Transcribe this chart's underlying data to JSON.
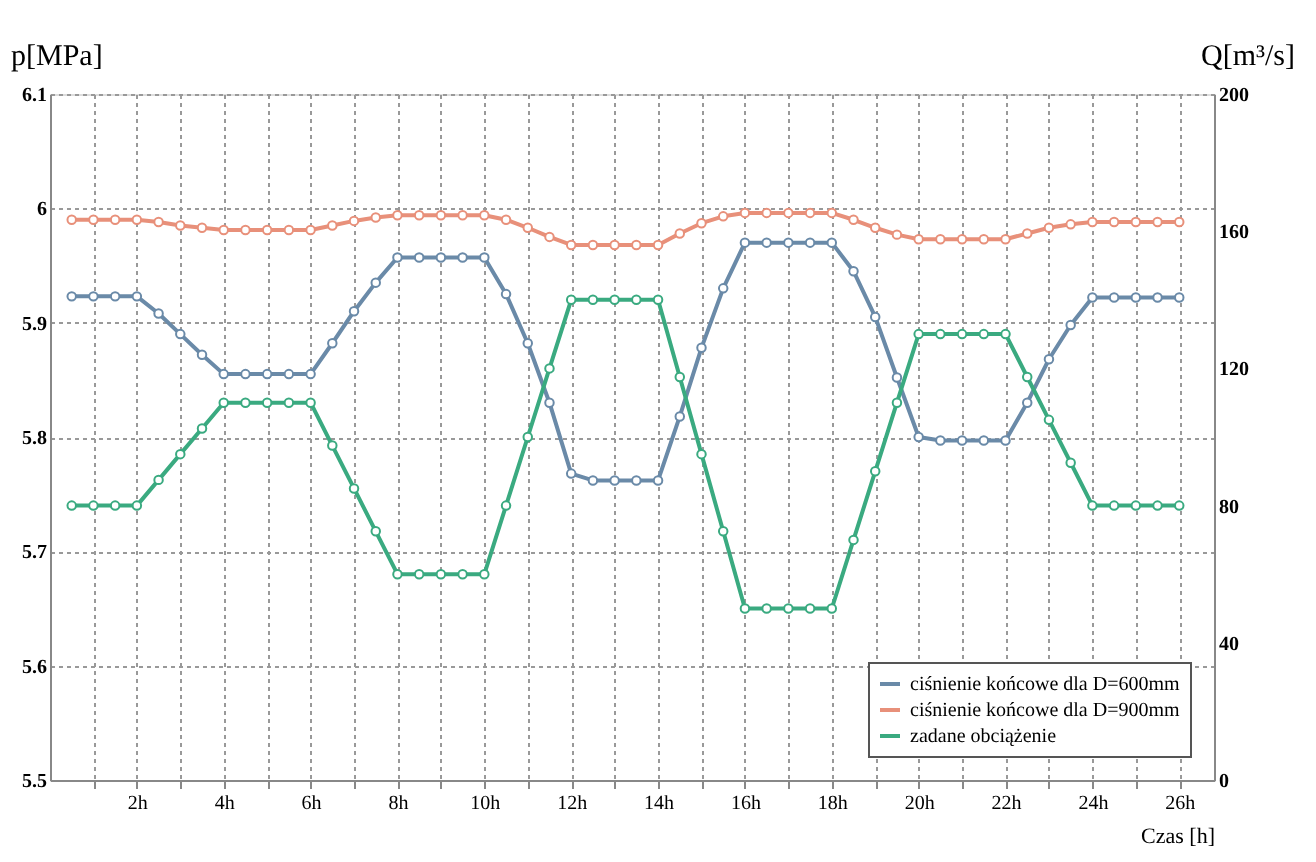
{
  "chart_data": {
    "type": "line",
    "xlabel": "Czas [h]",
    "ylabel": "p[MPa]",
    "y2label": "Q[m³/s]",
    "x": [
      0.5,
      1,
      1.5,
      2,
      2.5,
      3,
      3.5,
      4,
      4.5,
      5,
      5.5,
      6,
      6.5,
      7,
      7.5,
      8,
      8.5,
      9,
      9.5,
      10,
      10.5,
      11,
      11.5,
      12,
      12.5,
      13,
      13.5,
      14,
      14.5,
      15,
      15.5,
      16,
      16.5,
      17,
      17.5,
      18,
      18.5,
      19,
      19.5,
      20,
      20.5,
      21,
      21.5,
      22,
      22.5,
      23,
      23.5,
      24,
      24.5,
      25,
      25.5,
      26
    ],
    "series": [
      {
        "name": "ciśnienie końcowe dla D=600mm",
        "color": "#6a8aa8",
        "values": [
          5.923,
          5.923,
          5.923,
          5.923,
          5.908,
          5.89,
          5.872,
          5.855,
          5.855,
          5.855,
          5.855,
          5.855,
          5.882,
          5.91,
          5.935,
          5.957,
          5.957,
          5.957,
          5.957,
          5.957,
          5.925,
          5.882,
          5.83,
          5.768,
          5.762,
          5.762,
          5.762,
          5.762,
          5.818,
          5.878,
          5.93,
          5.97,
          5.97,
          5.97,
          5.97,
          5.97,
          5.945,
          5.905,
          5.852,
          5.8,
          5.797,
          5.797,
          5.797,
          5.797,
          5.83,
          5.868,
          5.898,
          5.922,
          5.922,
          5.922,
          5.922,
          5.922
        ]
      },
      {
        "name": "ciśnienie końcowe dla D=900mm",
        "color": "#e8907a",
        "values": [
          5.99,
          5.99,
          5.99,
          5.99,
          5.988,
          5.985,
          5.983,
          5.981,
          5.981,
          5.981,
          5.981,
          5.981,
          5.985,
          5.989,
          5.992,
          5.994,
          5.994,
          5.994,
          5.994,
          5.994,
          5.99,
          5.983,
          5.975,
          5.968,
          5.968,
          5.968,
          5.968,
          5.968,
          5.978,
          5.987,
          5.993,
          5.996,
          5.996,
          5.996,
          5.996,
          5.996,
          5.99,
          5.983,
          5.977,
          5.973,
          5.973,
          5.973,
          5.973,
          5.973,
          5.978,
          5.983,
          5.986,
          5.988,
          5.988,
          5.988,
          5.988,
          5.988
        ]
      },
      {
        "name": "zadane obciążenie",
        "color": "#3aaa80",
        "axis": "y2",
        "values": [
          80,
          80,
          80,
          80,
          87.5,
          95,
          102.5,
          110,
          110,
          110,
          110,
          110,
          97.5,
          85,
          72.5,
          60,
          60,
          60,
          60,
          60,
          80,
          100,
          120,
          140,
          140,
          140,
          140,
          140,
          117.5,
          95,
          72.5,
          50,
          50,
          50,
          50,
          50,
          70,
          90,
          110,
          130,
          130,
          130,
          130,
          130,
          117.5,
          105,
          92.5,
          80,
          80,
          80,
          80,
          80
        ]
      }
    ],
    "xlim": [
      0,
      26.8
    ],
    "xticks": [
      {
        "value": 1,
        "label": null
      },
      {
        "value": 2,
        "label": "2h"
      },
      {
        "value": 3,
        "label": null
      },
      {
        "value": 4,
        "label": "4h"
      },
      {
        "value": 5,
        "label": null
      },
      {
        "value": 6,
        "label": "6h"
      },
      {
        "value": 7,
        "label": null
      },
      {
        "value": 8,
        "label": "8h"
      },
      {
        "value": 9,
        "label": null
      },
      {
        "value": 10,
        "label": "10h"
      },
      {
        "value": 11,
        "label": null
      },
      {
        "value": 12,
        "label": "12h"
      },
      {
        "value": 13,
        "label": null
      },
      {
        "value": 14,
        "label": "14h"
      },
      {
        "value": 15,
        "label": null
      },
      {
        "value": 16,
        "label": "16h"
      },
      {
        "value": 17,
        "label": null
      },
      {
        "value": 18,
        "label": "18h"
      },
      {
        "value": 19,
        "label": null
      },
      {
        "value": 20,
        "label": "20h"
      },
      {
        "value": 21,
        "label": null
      },
      {
        "value": 22,
        "label": "22h"
      },
      {
        "value": 23,
        "label": null
      },
      {
        "value": 24,
        "label": "24h"
      },
      {
        "value": 25,
        "label": null
      },
      {
        "value": 26,
        "label": "26h"
      }
    ],
    "ylim": [
      5.5,
      6.1
    ],
    "yticks": [
      5.5,
      5.6,
      5.7,
      5.8,
      5.9,
      6,
      6.1
    ],
    "y2lim": [
      0,
      200
    ],
    "y2ticks": [
      0,
      40,
      80,
      120,
      160,
      200
    ],
    "grid": true,
    "legend": "bottom right",
    "marker": "circle",
    "line_style": "solid"
  }
}
